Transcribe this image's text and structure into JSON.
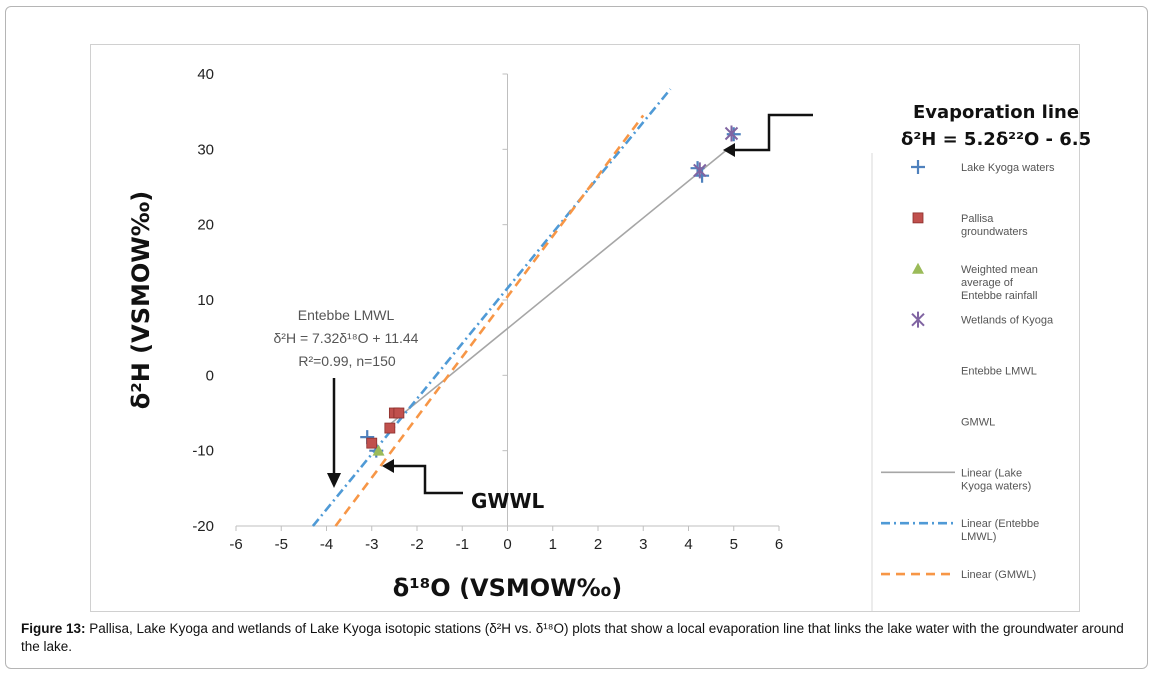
{
  "chart_data": {
    "type": "scatter",
    "xlabel": "δ¹⁸O (VSMOW‰)",
    "ylabel": "δ²H (VSMOW‰)",
    "xlim": [
      -6,
      6
    ],
    "ylim": [
      -20,
      40
    ],
    "xticks": [
      -6,
      -5,
      -4,
      -3,
      -2,
      -1,
      0,
      1,
      2,
      3,
      4,
      5,
      6
    ],
    "yticks": [
      -20,
      -10,
      0,
      10,
      20,
      30,
      40
    ],
    "grid": false,
    "legend_position": "right",
    "series": [
      {
        "name": "Lake Kyoga waters",
        "kind": "points",
        "marker": "plus",
        "color": "#4f81bd",
        "points": [
          [
            4.3,
            26.5
          ],
          [
            4.2,
            27.5
          ],
          [
            5.0,
            32.0
          ],
          [
            -3.1,
            -8.2
          ],
          [
            -2.9,
            -10.0
          ]
        ]
      },
      {
        "name": "Pallisa groundwaters",
        "kind": "points",
        "marker": "square",
        "color": "#c0504d",
        "points": [
          [
            -3.0,
            -9.0
          ],
          [
            -2.6,
            -7.0
          ],
          [
            -2.5,
            -5.0
          ],
          [
            -2.4,
            -5.0
          ]
        ]
      },
      {
        "name": "Weighted mean average of Entebbe rainfall",
        "kind": "points",
        "marker": "triangle",
        "color": "#9bbb59",
        "points": [
          [
            -2.85,
            -10.0
          ]
        ]
      },
      {
        "name": "Wetlands of Kyoga",
        "kind": "points",
        "marker": "star",
        "color": "#8064a2",
        "points": [
          [
            4.25,
            27.2
          ],
          [
            4.95,
            32.1
          ]
        ]
      },
      {
        "name": "Entebbe LMWL",
        "kind": "legend-only"
      },
      {
        "name": "GMWL",
        "kind": "legend-only"
      },
      {
        "name": "Linear (Lake Kyoga waters)",
        "kind": "line",
        "style": "solid",
        "color": "#a6a6a6",
        "points": [
          [
            -2.7,
            -7.0
          ],
          [
            4.9,
            30.2
          ]
        ]
      },
      {
        "name": "Linear (Entebbe LMWL)",
        "kind": "line",
        "style": "dashdot",
        "color": "#4f9ad6",
        "points": [
          [
            -4.3,
            -20.0
          ],
          [
            3.6,
            38.0
          ]
        ]
      },
      {
        "name": "Linear (GMWL)",
        "kind": "line",
        "style": "dashed",
        "color": "#f79646",
        "points": [
          [
            -3.8,
            -20.0
          ],
          [
            3.0,
            34.5
          ]
        ]
      }
    ],
    "annotations": [
      {
        "id": "evap",
        "lines": [
          "Evaporation line",
          "δ²H = 5.2δ²²O - 6.5"
        ]
      },
      {
        "id": "lmwl",
        "lines": [
          "Entebbe LMWL",
          "δ²H = 7.32δ¹⁸O + 11.44",
          "R²=0.99, n=150"
        ]
      },
      {
        "id": "gwwl",
        "lines": [
          "GWWL"
        ]
      }
    ]
  },
  "caption": {
    "label": "Figure 13:",
    "text": " Pallisa, Lake Kyoga and wetlands of Lake Kyoga isotopic stations (δ²H vs. δ¹⁸O) plots that show a local evaporation line that links the lake water with the groundwater around the lake."
  }
}
